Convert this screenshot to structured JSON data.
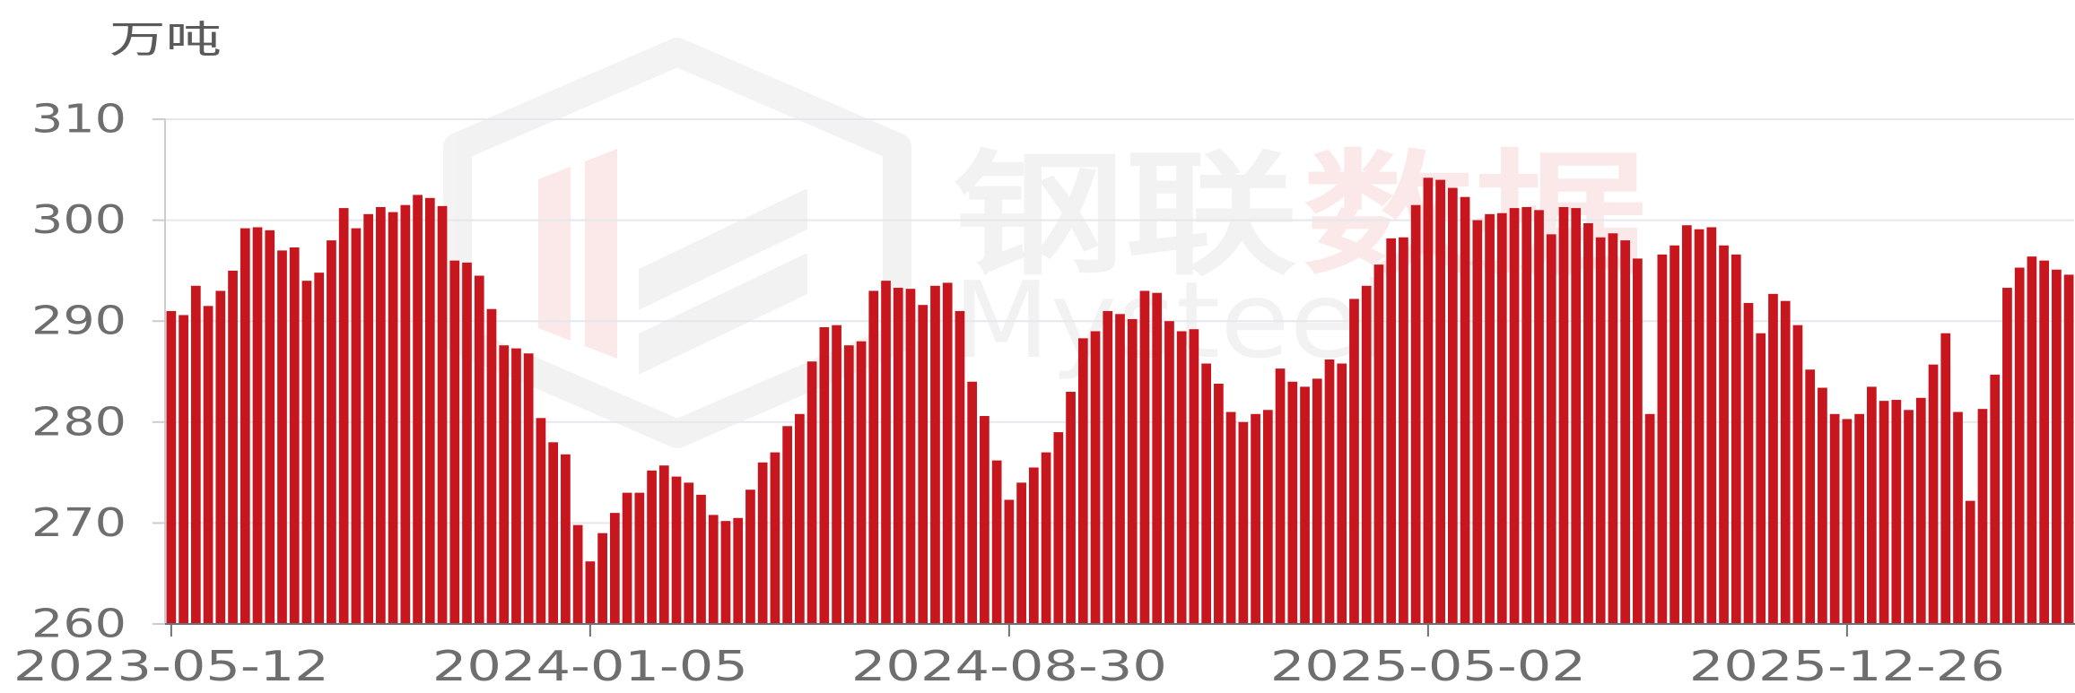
{
  "chart_data": {
    "type": "bar",
    "ylabel": "万吨",
    "x_tick_labels": [
      "2023-05-12",
      "2024-01-05",
      "2024-08-30",
      "2025-05-02",
      "2025-12-26"
    ],
    "y_ticks": [
      260,
      270,
      280,
      290,
      300,
      310
    ],
    "ylim": [
      260,
      310
    ],
    "grid": true,
    "values": [
      291,
      290.6,
      293.5,
      291.5,
      293,
      295,
      299.2,
      299.3,
      299,
      297,
      297.3,
      294,
      294.8,
      298,
      301.2,
      299.2,
      300.6,
      301.3,
      300.8,
      301.5,
      302.5,
      302.2,
      301.4,
      296,
      295.8,
      294.5,
      291.2,
      287.6,
      287.3,
      286.8,
      280.4,
      278,
      276.8,
      269.8,
      266.2,
      269,
      271,
      273,
      273,
      275.2,
      275.7,
      274.6,
      274,
      272.8,
      270.8,
      270.2,
      270.5,
      273.3,
      276,
      277,
      279.6,
      280.8,
      286,
      289.4,
      289.6,
      287.6,
      288,
      293,
      294,
      293.3,
      293.2,
      291.6,
      293.5,
      293.8,
      291,
      284,
      280.6,
      276.2,
      272.3,
      274,
      275.5,
      277,
      279,
      283,
      288.3,
      289,
      291,
      290.7,
      290.2,
      293,
      292.8,
      290,
      289,
      289.2,
      285.8,
      283.8,
      281,
      280,
      280.8,
      281.2,
      285.3,
      284,
      283.5,
      284.3,
      286.2,
      285.8,
      292.2,
      293.5,
      295.6,
      298.2,
      298.3,
      301.5,
      304.2,
      304,
      303.2,
      302.3,
      300,
      300.6,
      300.7,
      301.2,
      301.3,
      301,
      298.6,
      301.3,
      301.2,
      299.7,
      298.3,
      298.7,
      298,
      296.2,
      280.8,
      296.6,
      297.5,
      299.5,
      299.1,
      299.3,
      297.5,
      296.6,
      291.8,
      288.8,
      292.7,
      292,
      289.6,
      285.2,
      283.4,
      280.8,
      280.3,
      280.8,
      283.5,
      282.1,
      282.2,
      281.2,
      282.4,
      285.7,
      288.8,
      281,
      272.2,
      281.3,
      284.7,
      293.3,
      295.3,
      296.4,
      296,
      295.1,
      294.6
    ]
  },
  "watermark": {
    "brand_cn_grey": "钢联",
    "brand_cn_red": "数据",
    "brand_en": "Mysteel"
  },
  "colors": {
    "bar": "#c8161e",
    "gridline": "#e4e7ed",
    "axis_line": "#6e7079",
    "y_axis_line": "#c9ccd3",
    "axis_text": "#6e6e6e"
  }
}
